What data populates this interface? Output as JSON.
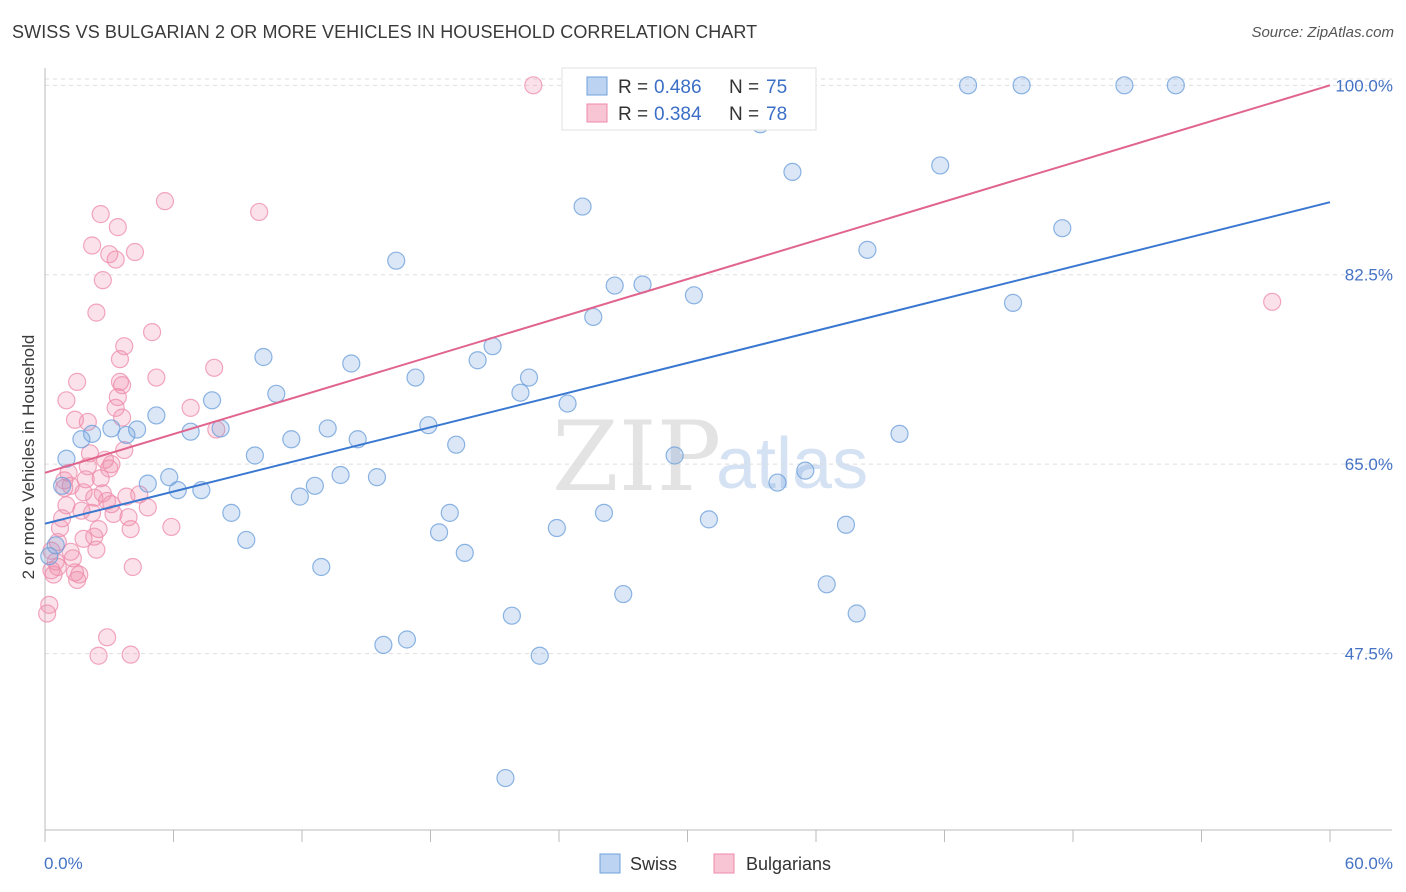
{
  "title": "SWISS VS BULGARIAN 2 OR MORE VEHICLES IN HOUSEHOLD CORRELATION CHART",
  "source": "Source: ZipAtlas.com",
  "watermark": {
    "zip": "ZIP",
    "atlas": "atlas"
  },
  "colors": {
    "swiss": "#6fa1dc",
    "swiss_line": "#3a78d0",
    "bulgarians": "#ee8aaa",
    "bulgarians_line": "#e0648c",
    "tick_text": "#4472c4"
  },
  "legend": {
    "swiss": {
      "r_label": "R = ",
      "r_value": "0.486",
      "n_label": "N = ",
      "n_value": "75"
    },
    "bulgarians": {
      "r_label": "R = ",
      "r_value": "0.384",
      "n_label": "N = ",
      "n_value": "78"
    }
  },
  "bottom_legend": {
    "swiss": "Swiss",
    "bulgarians": "Bulgarians"
  },
  "chart_data": {
    "type": "scatter",
    "title": "SWISS VS BULGARIAN 2 OR MORE VEHICLES IN HOUSEHOLD CORRELATION CHART",
    "xlabel": "",
    "ylabel": "2 or more Vehicles in Household",
    "xlim": [
      0,
      60
    ],
    "ylim": [
      31.2,
      101.6
    ],
    "x_tick_labels": [
      "0.0%",
      "60.0%"
    ],
    "y_ticks": [
      47.5,
      65.0,
      82.5,
      100.0
    ],
    "y_tick_labels": [
      "47.5%",
      "65.0%",
      "82.5%",
      "100.0%"
    ],
    "grid": true,
    "legend_position": "top-center",
    "series": [
      {
        "name": "Swiss",
        "r": 0.486,
        "n": 75,
        "trend": {
          "x": [
            0,
            60
          ],
          "y": [
            59.5,
            89.2
          ]
        },
        "points": [
          [
            0.5,
            57.5
          ],
          [
            0.8,
            63.0
          ],
          [
            1.0,
            65.5
          ],
          [
            1.7,
            67.3
          ],
          [
            2.2,
            67.8
          ],
          [
            3.1,
            68.3
          ],
          [
            3.8,
            67.7
          ],
          [
            4.3,
            68.2
          ],
          [
            4.8,
            63.2
          ],
          [
            5.2,
            69.5
          ],
          [
            5.8,
            63.8
          ],
          [
            6.2,
            62.6
          ],
          [
            6.8,
            68.0
          ],
          [
            7.3,
            62.6
          ],
          [
            7.8,
            70.9
          ],
          [
            8.2,
            68.3
          ],
          [
            8.7,
            60.5
          ],
          [
            9.4,
            58.0
          ],
          [
            9.8,
            65.8
          ],
          [
            10.2,
            74.9
          ],
          [
            10.8,
            71.5
          ],
          [
            11.5,
            67.3
          ],
          [
            11.9,
            62.0
          ],
          [
            12.6,
            63.0
          ],
          [
            12.9,
            55.5
          ],
          [
            13.2,
            68.3
          ],
          [
            13.8,
            64.0
          ],
          [
            14.3,
            74.3
          ],
          [
            14.6,
            67.3
          ],
          [
            15.5,
            63.8
          ],
          [
            15.8,
            48.3
          ],
          [
            16.4,
            83.8
          ],
          [
            16.9,
            48.8
          ],
          [
            17.3,
            73.0
          ],
          [
            17.9,
            68.6
          ],
          [
            18.4,
            58.7
          ],
          [
            18.9,
            60.5
          ],
          [
            19.2,
            66.8
          ],
          [
            19.6,
            56.8
          ],
          [
            20.2,
            74.6
          ],
          [
            20.9,
            75.9
          ],
          [
            21.5,
            36.0
          ],
          [
            21.8,
            51.0
          ],
          [
            22.2,
            71.6
          ],
          [
            22.6,
            73.0
          ],
          [
            23.1,
            47.3
          ],
          [
            23.9,
            59.1
          ],
          [
            24.4,
            70.6
          ],
          [
            25.1,
            88.8
          ],
          [
            25.6,
            78.6
          ],
          [
            26.1,
            60.5
          ],
          [
            26.6,
            81.5
          ],
          [
            27.0,
            53.0
          ],
          [
            27.9,
            81.6
          ],
          [
            29.4,
            65.8
          ],
          [
            30.3,
            80.6
          ],
          [
            31.0,
            59.9
          ],
          [
            31.7,
            100.0
          ],
          [
            33.4,
            96.4
          ],
          [
            34.2,
            63.3
          ],
          [
            34.9,
            92.0
          ],
          [
            35.5,
            64.4
          ],
          [
            36.5,
            53.9
          ],
          [
            37.4,
            59.4
          ],
          [
            37.9,
            51.2
          ],
          [
            38.4,
            84.8
          ],
          [
            39.9,
            67.8
          ],
          [
            41.8,
            92.6
          ],
          [
            43.1,
            100.0
          ],
          [
            45.2,
            79.9
          ],
          [
            45.6,
            100.0
          ],
          [
            47.5,
            86.8
          ],
          [
            50.4,
            100.0
          ],
          [
            52.8,
            100.0
          ],
          [
            0.2,
            56.5
          ]
        ]
      },
      {
        "name": "Bulgarians",
        "r": 0.384,
        "n": 78,
        "trend": {
          "x": [
            0,
            60
          ],
          "y": [
            64.2,
            100.0
          ]
        },
        "points": [
          [
            0.1,
            51.2
          ],
          [
            0.2,
            52.0
          ],
          [
            0.3,
            55.2
          ],
          [
            0.4,
            54.8
          ],
          [
            0.5,
            56.0
          ],
          [
            0.6,
            55.5
          ],
          [
            0.7,
            59.1
          ],
          [
            0.8,
            60.0
          ],
          [
            0.9,
            62.8
          ],
          [
            1.0,
            61.2
          ],
          [
            1.1,
            64.2
          ],
          [
            1.2,
            63.0
          ],
          [
            1.3,
            56.3
          ],
          [
            1.4,
            55.0
          ],
          [
            1.5,
            54.3
          ],
          [
            1.6,
            54.8
          ],
          [
            1.7,
            60.7
          ],
          [
            1.8,
            62.4
          ],
          [
            1.9,
            63.6
          ],
          [
            2.0,
            64.8
          ],
          [
            2.1,
            66.0
          ],
          [
            2.2,
            60.5
          ],
          [
            2.3,
            58.3
          ],
          [
            2.4,
            57.1
          ],
          [
            2.5,
            59.0
          ],
          [
            2.6,
            63.7
          ],
          [
            2.7,
            62.3
          ],
          [
            2.8,
            65.4
          ],
          [
            2.9,
            61.6
          ],
          [
            3.0,
            64.6
          ],
          [
            3.1,
            61.3
          ],
          [
            3.2,
            60.4
          ],
          [
            3.3,
            70.2
          ],
          [
            3.4,
            71.2
          ],
          [
            3.5,
            72.6
          ],
          [
            3.6,
            69.3
          ],
          [
            3.7,
            66.3
          ],
          [
            3.8,
            62.0
          ],
          [
            3.9,
            60.1
          ],
          [
            4.0,
            59.0
          ],
          [
            4.1,
            55.5
          ],
          [
            2.9,
            49.0
          ],
          [
            2.5,
            47.3
          ],
          [
            4.0,
            47.4
          ],
          [
            1.0,
            70.9
          ],
          [
            1.4,
            69.1
          ],
          [
            1.5,
            72.6
          ],
          [
            2.0,
            68.9
          ],
          [
            2.2,
            85.2
          ],
          [
            2.4,
            79.0
          ],
          [
            2.6,
            88.1
          ],
          [
            2.7,
            82.0
          ],
          [
            3.0,
            84.4
          ],
          [
            3.3,
            83.9
          ],
          [
            3.4,
            86.9
          ],
          [
            3.5,
            74.7
          ],
          [
            3.6,
            72.3
          ],
          [
            3.7,
            75.9
          ],
          [
            4.2,
            84.6
          ],
          [
            4.4,
            62.2
          ],
          [
            4.8,
            61.0
          ],
          [
            5.0,
            77.2
          ],
          [
            5.2,
            73.0
          ],
          [
            5.6,
            89.3
          ],
          [
            5.9,
            59.2
          ],
          [
            6.8,
            70.2
          ],
          [
            7.9,
            73.9
          ],
          [
            8.0,
            68.2
          ],
          [
            10.0,
            88.3
          ],
          [
            22.8,
            100.0
          ],
          [
            57.3,
            80.0
          ],
          [
            0.3,
            57.0
          ],
          [
            0.6,
            57.8
          ],
          [
            1.2,
            56.9
          ],
          [
            0.9,
            63.5
          ],
          [
            1.8,
            58.1
          ],
          [
            2.3,
            61.9
          ],
          [
            3.1,
            65.0
          ]
        ]
      }
    ]
  }
}
